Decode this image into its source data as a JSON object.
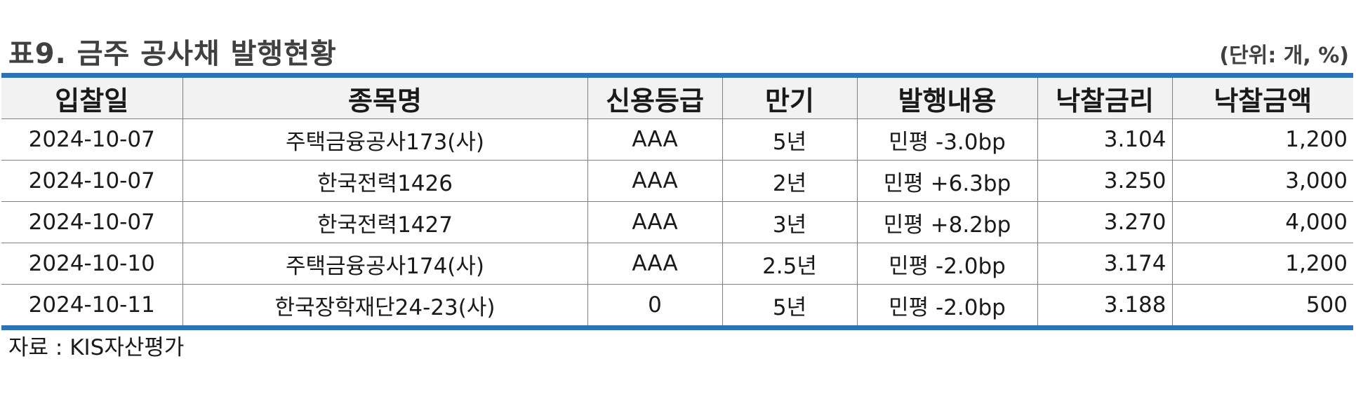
{
  "title": "표9. 금주 공사채 발행현황",
  "unit": "(단위: 개, %)",
  "table": {
    "headers": [
      "입찰일",
      "종목명",
      "신용등급",
      "만기",
      "발행내용",
      "낙찰금리",
      "낙찰금액"
    ],
    "rows": [
      [
        "2024-10-07",
        "주택금융공사173(사)",
        "AAA",
        "5년",
        "민평 -3.0bp",
        "3.104",
        "1,200"
      ],
      [
        "2024-10-07",
        "한국전력1426",
        "AAA",
        "2년",
        "민평 +6.3bp",
        "3.250",
        "3,000"
      ],
      [
        "2024-10-07",
        "한국전력1427",
        "AAA",
        "3년",
        "민평 +8.2bp",
        "3.270",
        "4,000"
      ],
      [
        "2024-10-10",
        "주택금융공사174(사)",
        "AAA",
        "2.5년",
        "민평 -2.0bp",
        "3.174",
        "1,200"
      ],
      [
        "2024-10-11",
        "한국장학재단24-23(사)",
        "0",
        "5년",
        "민평 -2.0bp",
        "3.188",
        "500"
      ]
    ]
  },
  "source": "자료 : KIS자산평가",
  "colors": {
    "rule": "#2e74b5",
    "header_bg": "#f2f2f2",
    "grid": "#7f7f7f"
  }
}
